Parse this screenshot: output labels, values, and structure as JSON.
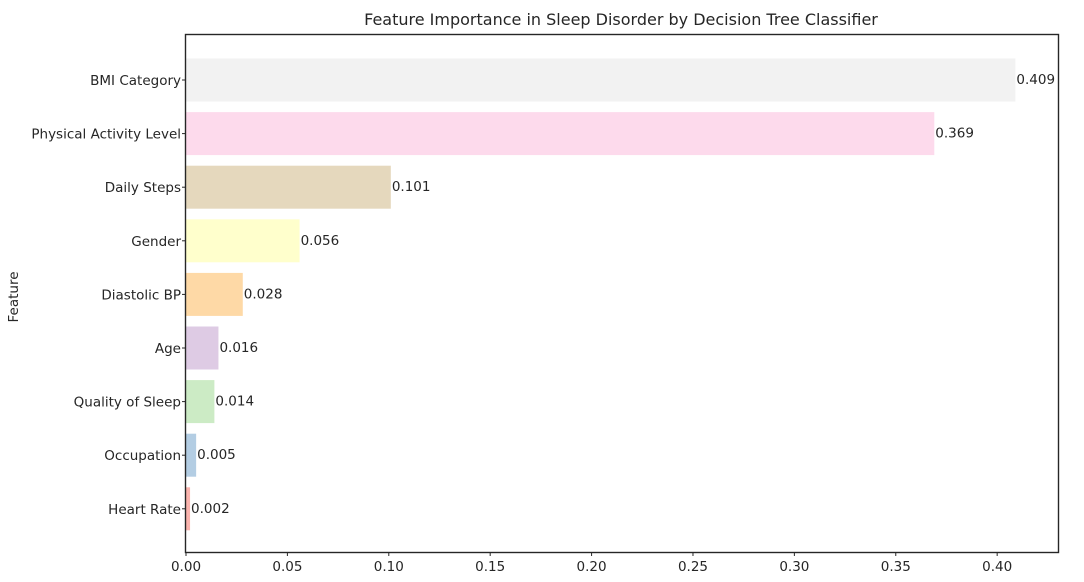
{
  "chart_data": {
    "type": "bar",
    "orientation": "horizontal",
    "title": "Feature Importance in Sleep Disorder by Decision Tree Classifier",
    "xlabel": "",
    "ylabel": "Feature",
    "xlim": [
      0,
      0.43
    ],
    "xticks": [
      "0.00",
      "0.05",
      "0.10",
      "0.15",
      "0.20",
      "0.25",
      "0.30",
      "0.35",
      "0.40"
    ],
    "grid": false,
    "categories": [
      "BMI Category",
      "Physical Activity Level",
      "Daily Steps",
      "Gender",
      "Diastolic BP",
      "Age",
      "Quality of Sleep",
      "Occupation",
      "Heart Rate"
    ],
    "values": [
      0.409,
      0.369,
      0.101,
      0.056,
      0.028,
      0.016,
      0.014,
      0.005,
      0.002
    ],
    "value_labels": [
      "0.409",
      "0.369",
      "0.101",
      "0.056",
      "0.028",
      "0.016",
      "0.014",
      "0.005",
      "0.002"
    ],
    "colors": [
      "#f2f2f2",
      "#fddaec",
      "#e5d8bd",
      "#ffffcc",
      "#fed9a6",
      "#decbe4",
      "#ccebc5",
      "#b3cde3",
      "#fbb4ae"
    ]
  }
}
